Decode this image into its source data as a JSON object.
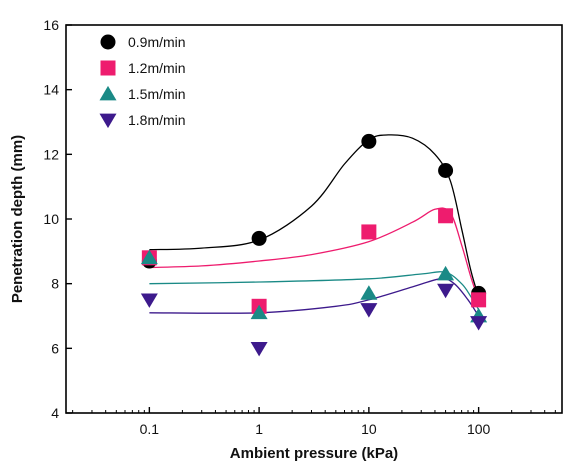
{
  "chart_data": {
    "type": "scatter",
    "xlabel": "Ambient pressure (kPa)",
    "ylabel": "Penetration depth (mm)",
    "xscale": "log",
    "xlim": [
      0.0174,
      575
    ],
    "ylim": [
      4,
      16
    ],
    "x_ticks": [
      0.1,
      1,
      10,
      100
    ],
    "x_tick_labels": [
      "0.1",
      "1",
      "10",
      "100"
    ],
    "y_ticks": [
      4,
      6,
      8,
      10,
      12,
      14,
      16
    ],
    "y_tick_labels": [
      "4",
      "6",
      "8",
      "10",
      "12",
      "14",
      "16"
    ],
    "grid": false,
    "legend_position": "top-left",
    "series": [
      {
        "name": "0.9m/min",
        "marker": "circle",
        "color": "#000000",
        "points": [
          {
            "x": 0.1,
            "y": 8.7
          },
          {
            "x": 1,
            "y": 9.4
          },
          {
            "x": 10,
            "y": 12.4
          },
          {
            "x": 50,
            "y": 11.5
          },
          {
            "x": 100,
            "y": 7.7
          }
        ],
        "fit": [
          [
            0.1,
            9.05
          ],
          [
            0.3,
            9.1
          ],
          [
            1,
            9.35
          ],
          [
            3,
            10.4
          ],
          [
            6,
            11.7
          ],
          [
            10,
            12.45
          ],
          [
            15,
            12.6
          ],
          [
            25,
            12.5
          ],
          [
            40,
            12.0
          ],
          [
            55,
            11.2
          ],
          [
            70,
            9.7
          ],
          [
            85,
            8.4
          ],
          [
            100,
            7.6
          ]
        ]
      },
      {
        "name": "1.2m/min",
        "marker": "square",
        "color": "#ee1c6e",
        "points": [
          {
            "x": 0.1,
            "y": 8.8
          },
          {
            "x": 1,
            "y": 7.3
          },
          {
            "x": 10,
            "y": 9.6
          },
          {
            "x": 50,
            "y": 10.1
          },
          {
            "x": 100,
            "y": 7.5
          }
        ],
        "fit": [
          [
            0.1,
            8.5
          ],
          [
            0.3,
            8.55
          ],
          [
            1,
            8.7
          ],
          [
            3,
            8.9
          ],
          [
            10,
            9.3
          ],
          [
            25,
            9.9
          ],
          [
            40,
            10.3
          ],
          [
            55,
            10.2
          ],
          [
            70,
            9.2
          ],
          [
            85,
            8.2
          ],
          [
            100,
            7.5
          ]
        ]
      },
      {
        "name": "1.5m/min",
        "marker": "triangle-up",
        "color": "#1a8a86",
        "points": [
          {
            "x": 0.1,
            "y": 8.8
          },
          {
            "x": 1,
            "y": 7.1
          },
          {
            "x": 10,
            "y": 7.7
          },
          {
            "x": 50,
            "y": 8.3
          },
          {
            "x": 100,
            "y": 7.0
          }
        ],
        "fit": [
          [
            0.1,
            8.0
          ],
          [
            1,
            8.05
          ],
          [
            10,
            8.15
          ],
          [
            30,
            8.3
          ],
          [
            50,
            8.35
          ],
          [
            70,
            8.0
          ],
          [
            85,
            7.6
          ],
          [
            100,
            7.2
          ]
        ]
      },
      {
        "name": "1.8m/min",
        "marker": "triangle-down",
        "color": "#3d1a8c",
        "points": [
          {
            "x": 0.1,
            "y": 7.5
          },
          {
            "x": 1,
            "y": 6.0
          },
          {
            "x": 10,
            "y": 7.2
          },
          {
            "x": 50,
            "y": 7.8
          },
          {
            "x": 100,
            "y": 6.8
          }
        ],
        "fit": [
          [
            0.1,
            7.1
          ],
          [
            1,
            7.1
          ],
          [
            5,
            7.3
          ],
          [
            10,
            7.5
          ],
          [
            25,
            7.9
          ],
          [
            45,
            8.15
          ],
          [
            60,
            8.0
          ],
          [
            80,
            7.5
          ],
          [
            100,
            7.0
          ]
        ]
      }
    ]
  }
}
